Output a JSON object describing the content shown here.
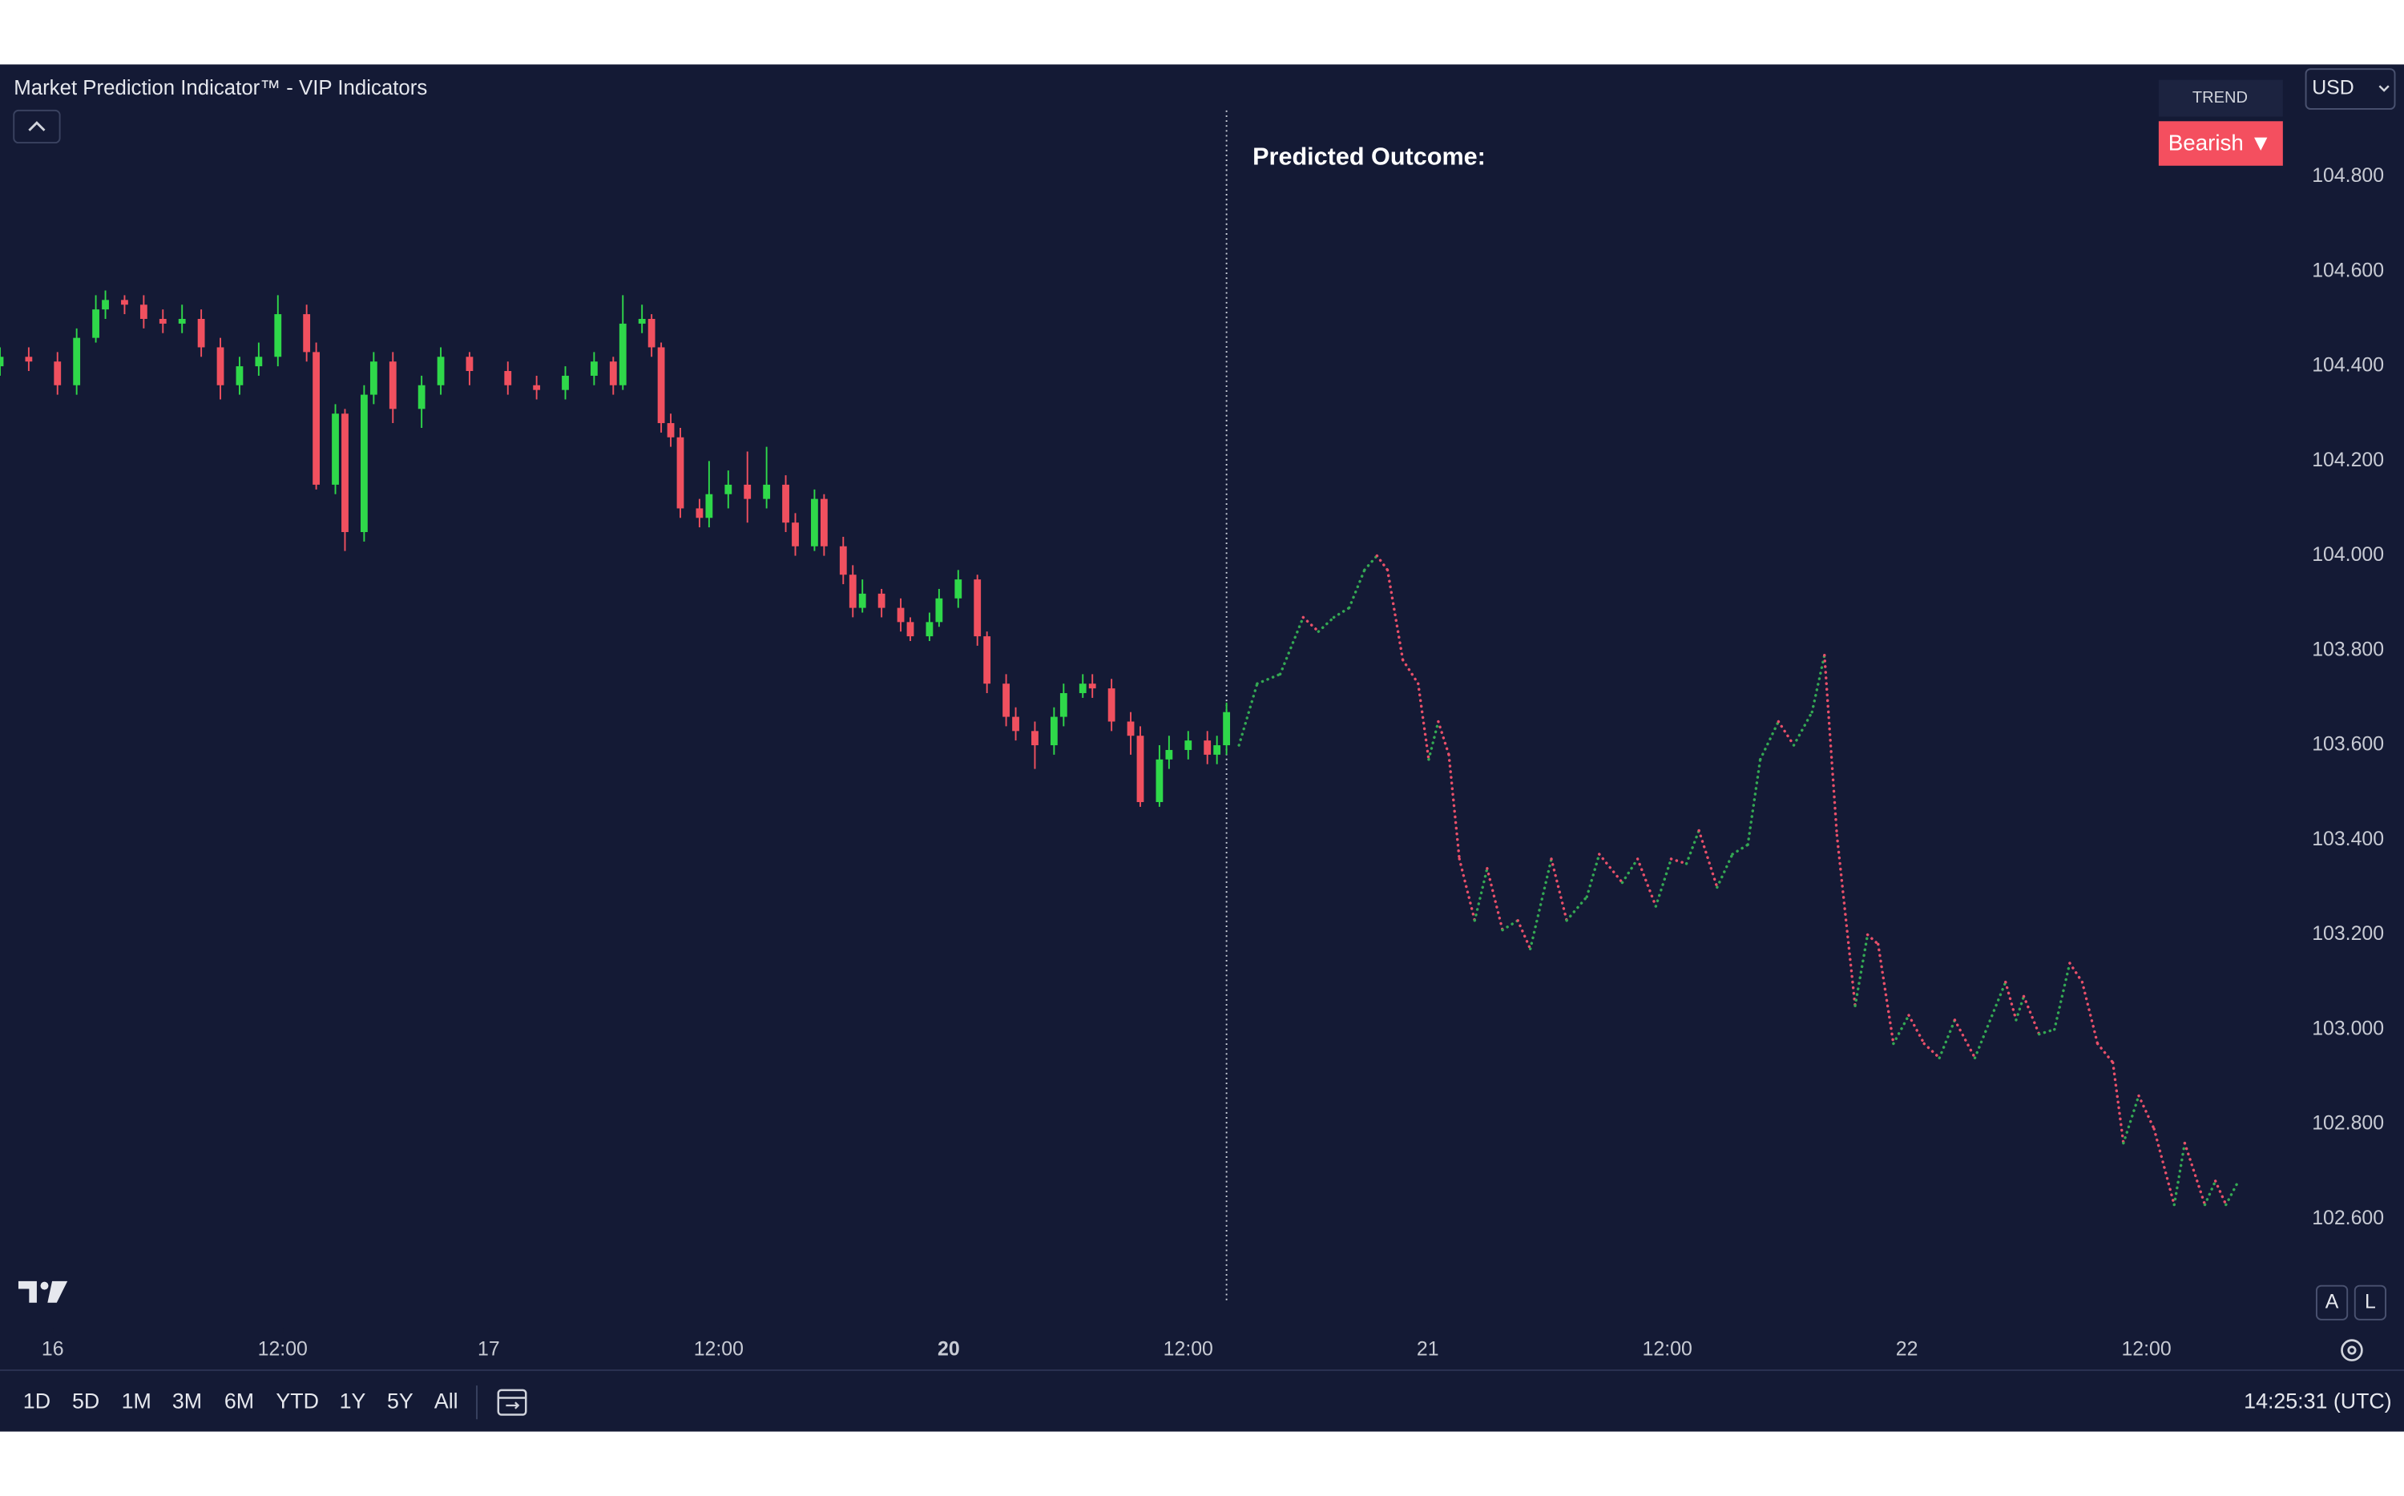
{
  "chart_data": {
    "type": "candlestick",
    "title": "Market Prediction Indicator™ - VIP Indicators",
    "annotation": "Predicted Outcome:",
    "trend_label": "TREND",
    "trend_value": "Bearish ▼",
    "currency": "USD",
    "scale_buttons": [
      "A",
      "L"
    ],
    "ranges": [
      "1D",
      "5D",
      "1M",
      "3M",
      "6M",
      "YTD",
      "1Y",
      "5Y",
      "All"
    ],
    "clock": "14:25:31 (UTC)",
    "xlim": [
      0,
      240
    ],
    "ylim": [
      102.42,
      104.94
    ],
    "xticks": [
      {
        "value": 5.5,
        "label": "16"
      },
      {
        "value": 29.5,
        "label": "12:00"
      },
      {
        "value": 51,
        "label": "17"
      },
      {
        "value": 75,
        "label": "12:00"
      },
      {
        "value": 99,
        "label": "20",
        "bold": true
      },
      {
        "value": 124,
        "label": "12:00"
      },
      {
        "value": 149,
        "label": "21"
      },
      {
        "value": 174,
        "label": "12:00"
      },
      {
        "value": 199,
        "label": "22"
      },
      {
        "value": 224,
        "label": "12:00"
      }
    ],
    "yticks": [
      {
        "value": 102.6,
        "label": "102.600"
      },
      {
        "value": 102.8,
        "label": "102.800"
      },
      {
        "value": 103.0,
        "label": "103.000"
      },
      {
        "value": 103.2,
        "label": "103.200"
      },
      {
        "value": 103.4,
        "label": "103.400"
      },
      {
        "value": 103.6,
        "label": "103.600"
      },
      {
        "value": 103.8,
        "label": "103.800"
      },
      {
        "value": 104.0,
        "label": "104.000"
      },
      {
        "value": 104.2,
        "label": "104.200"
      },
      {
        "value": 104.4,
        "label": "104.400"
      },
      {
        "value": 104.6,
        "label": "104.600"
      },
      {
        "value": 104.8,
        "label": "104.800"
      }
    ],
    "candles": {
      "up_color": "#2fd84a",
      "down_color": "#f0505f",
      "x": [
        0,
        3,
        6,
        8,
        10,
        11,
        13,
        15,
        17,
        19,
        21,
        23,
        25,
        27,
        29,
        32,
        33,
        35,
        36,
        38,
        39,
        41,
        44,
        46,
        49,
        53,
        56,
        59,
        62,
        64,
        65,
        67,
        68,
        69,
        70,
        71,
        73,
        74,
        76,
        78,
        80,
        82,
        83,
        85,
        86,
        88,
        89,
        90,
        92,
        94,
        95,
        97,
        98,
        100,
        102,
        103,
        105,
        106,
        108,
        110,
        111,
        113,
        114,
        116,
        118,
        119,
        121,
        122,
        124,
        126,
        127,
        128
      ],
      "open": [
        104.4,
        104.42,
        104.41,
        104.36,
        104.46,
        104.52,
        104.54,
        104.53,
        104.5,
        104.49,
        104.5,
        104.44,
        104.36,
        104.4,
        104.42,
        104.51,
        104.43,
        104.15,
        104.3,
        104.05,
        104.34,
        104.41,
        104.31,
        104.36,
        104.42,
        104.39,
        104.36,
        104.35,
        104.38,
        104.41,
        104.36,
        104.49,
        104.5,
        104.44,
        104.28,
        104.25,
        104.1,
        104.08,
        104.13,
        104.15,
        104.12,
        104.15,
        104.07,
        104.02,
        104.12,
        104.02,
        103.96,
        103.89,
        103.92,
        103.89,
        103.86,
        103.83,
        103.86,
        103.91,
        103.95,
        103.83,
        103.73,
        103.66,
        103.63,
        103.6,
        103.66,
        103.71,
        103.73,
        103.72,
        103.65,
        103.62,
        103.48,
        103.57,
        103.59,
        103.61,
        103.58,
        103.6
      ],
      "high": [
        104.44,
        104.44,
        104.43,
        104.48,
        104.55,
        104.56,
        104.55,
        104.55,
        104.52,
        104.53,
        104.52,
        104.46,
        104.42,
        104.45,
        104.55,
        104.53,
        104.45,
        104.32,
        104.31,
        104.36,
        104.43,
        104.43,
        104.38,
        104.44,
        104.43,
        104.41,
        104.38,
        104.4,
        104.43,
        104.42,
        104.55,
        104.53,
        104.51,
        104.45,
        104.3,
        104.27,
        104.12,
        104.2,
        104.18,
        104.22,
        104.23,
        104.17,
        104.09,
        104.14,
        104.13,
        104.04,
        103.98,
        103.95,
        103.93,
        103.91,
        103.87,
        103.88,
        103.93,
        103.97,
        103.96,
        103.84,
        103.75,
        103.68,
        103.65,
        103.68,
        103.73,
        103.75,
        103.75,
        103.74,
        103.67,
        103.64,
        103.6,
        103.62,
        103.63,
        103.63,
        103.62,
        103.69
      ],
      "low": [
        104.38,
        104.39,
        104.34,
        104.34,
        104.45,
        104.5,
        104.51,
        104.48,
        104.47,
        104.47,
        104.42,
        104.33,
        104.34,
        104.38,
        104.4,
        104.41,
        104.14,
        104.13,
        104.01,
        104.03,
        104.32,
        104.28,
        104.27,
        104.34,
        104.36,
        104.34,
        104.33,
        104.33,
        104.36,
        104.34,
        104.35,
        104.47,
        104.42,
        104.26,
        104.23,
        104.08,
        104.06,
        104.06,
        104.1,
        104.07,
        104.1,
        104.05,
        104.0,
        104.01,
        104.0,
        103.94,
        103.87,
        103.88,
        103.87,
        103.84,
        103.82,
        103.82,
        103.85,
        103.89,
        103.81,
        103.71,
        103.64,
        103.61,
        103.55,
        103.58,
        103.64,
        103.7,
        103.7,
        103.63,
        103.58,
        103.47,
        103.47,
        103.55,
        103.57,
        103.56,
        103.56,
        103.58
      ],
      "close": [
        104.42,
        104.41,
        104.36,
        104.46,
        104.52,
        104.54,
        104.53,
        104.5,
        104.49,
        104.5,
        104.44,
        104.36,
        104.4,
        104.42,
        104.51,
        104.43,
        104.15,
        104.3,
        104.05,
        104.34,
        104.41,
        104.31,
        104.36,
        104.42,
        104.39,
        104.36,
        104.35,
        104.38,
        104.41,
        104.36,
        104.49,
        104.5,
        104.44,
        104.28,
        104.25,
        104.1,
        104.08,
        104.13,
        104.15,
        104.12,
        104.15,
        104.07,
        104.02,
        104.12,
        104.02,
        103.96,
        103.89,
        103.92,
        103.89,
        103.86,
        103.83,
        103.86,
        103.91,
        103.95,
        103.83,
        103.73,
        103.66,
        103.63,
        103.6,
        103.66,
        103.71,
        103.73,
        103.72,
        103.65,
        103.62,
        103.48,
        103.57,
        103.59,
        103.61,
        103.58,
        103.6,
        103.67
      ]
    },
    "prediction": {
      "up_color": "#34a853",
      "down_color": "#e8506a",
      "x": [
        129.3,
        131.2,
        133.6,
        136,
        137.6,
        139.2,
        140.8,
        142.4,
        143.7,
        144.8,
        146.4,
        148,
        149.1,
        150.1,
        151.2,
        152.3,
        153.9,
        155.2,
        156.8,
        158.4,
        159.7,
        161.9,
        163.5,
        165.6,
        166.9,
        169.3,
        170.9,
        172.8,
        174.4,
        176,
        177.3,
        179.2,
        180.8,
        182.4,
        183.7,
        185.6,
        187.2,
        189.1,
        190.4,
        191.7,
        193.6,
        194.9,
        196,
        197.6,
        199.2,
        200.8,
        202.4,
        204,
        206.1,
        209.3,
        210.4,
        211.2,
        212.8,
        214.4,
        216,
        217.3,
        218.9,
        220.5,
        221.6,
        223.2,
        224.8,
        226.9,
        228,
        230.1,
        231.2,
        232.3,
        233.6
      ],
      "y": [
        103.6,
        103.73,
        103.75,
        103.87,
        103.84,
        103.87,
        103.89,
        103.97,
        104.0,
        103.97,
        103.78,
        103.73,
        103.57,
        103.65,
        103.58,
        103.36,
        103.23,
        103.34,
        103.21,
        103.23,
        103.17,
        103.36,
        103.23,
        103.28,
        103.37,
        103.31,
        103.36,
        103.26,
        103.36,
        103.35,
        103.42,
        103.3,
        103.37,
        103.39,
        103.57,
        103.65,
        103.6,
        103.67,
        103.79,
        103.41,
        103.05,
        103.2,
        103.18,
        102.97,
        103.03,
        102.97,
        102.94,
        103.02,
        102.94,
        103.1,
        103.02,
        103.07,
        102.99,
        103.0,
        103.14,
        103.1,
        102.97,
        102.93,
        102.76,
        102.86,
        102.79,
        102.63,
        102.76,
        102.63,
        102.68,
        102.63,
        102.68
      ]
    }
  }
}
